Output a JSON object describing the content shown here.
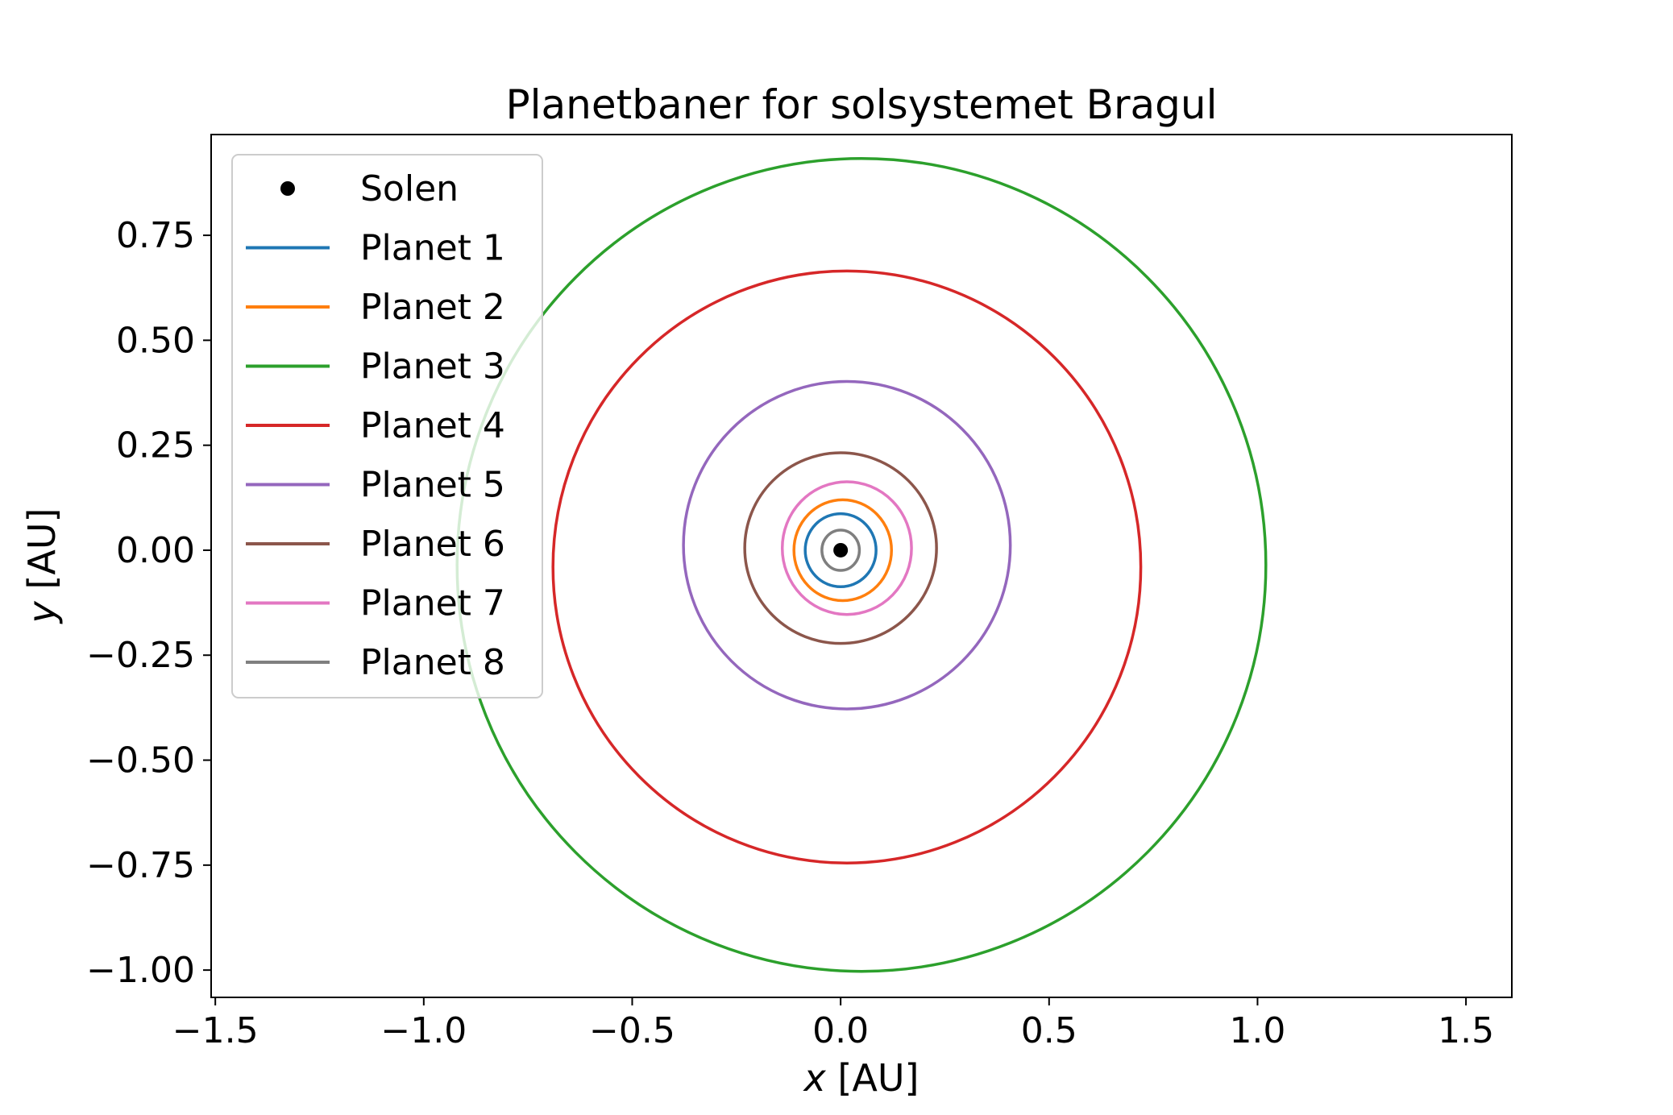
{
  "chart_data": {
    "type": "line",
    "title": "Planetbaner for solsystemet Bragul",
    "xlabel_var": "x",
    "xlabel_unit": " [AU]",
    "ylabel_var": "y",
    "ylabel_unit": " [AU]",
    "xlim": [
      -1.51,
      1.61
    ],
    "ylim": [
      -1.065,
      0.99
    ],
    "xticks": [
      -1.5,
      -1.0,
      -0.5,
      0.0,
      0.5,
      1.0,
      1.5
    ],
    "xtick_labels": [
      "−1.5",
      "−1.0",
      "−0.5",
      "0.0",
      "0.5",
      "1.0",
      "1.5"
    ],
    "yticks": [
      0.75,
      0.5,
      0.25,
      0.0,
      -0.25,
      -0.5,
      -0.75,
      -1.0
    ],
    "ytick_labels": [
      "0.75",
      "0.50",
      "0.25",
      "0.00",
      "−0.25",
      "−0.50",
      "−0.75",
      "−1.00"
    ],
    "grid": false,
    "legend_position": "top-left",
    "sun": {
      "name": "Solen",
      "x": 0.0,
      "y": 0.0,
      "color": "#000000"
    },
    "series": [
      {
        "name": "Planet 1",
        "color": "#1f77b4",
        "center": [
          0.0,
          0.0
        ],
        "semi_axes": [
          0.085,
          0.087
        ]
      },
      {
        "name": "Planet 2",
        "color": "#ff7f0e",
        "center": [
          0.005,
          0.0
        ],
        "semi_axes": [
          0.117,
          0.12
        ]
      },
      {
        "name": "Planet 3",
        "color": "#2ca02c",
        "center": [
          0.05,
          -0.035
        ],
        "semi_axes": [
          0.97,
          0.968
        ]
      },
      {
        "name": "Planet 4",
        "color": "#d62728",
        "center": [
          0.015,
          -0.04
        ],
        "semi_axes": [
          0.705,
          0.705
        ]
      },
      {
        "name": "Planet 5",
        "color": "#9467bd",
        "center": [
          0.015,
          0.012
        ],
        "semi_axes": [
          0.392,
          0.39
        ]
      },
      {
        "name": "Planet 6",
        "color": "#8c564b",
        "center": [
          0.0,
          0.005
        ],
        "semi_axes": [
          0.23,
          0.227
        ]
      },
      {
        "name": "Planet 7",
        "color": "#e377c2",
        "center": [
          0.015,
          0.005
        ],
        "semi_axes": [
          0.155,
          0.158
        ]
      },
      {
        "name": "Planet 8",
        "color": "#7f7f7f",
        "center": [
          0.0,
          0.0
        ],
        "semi_axes": [
          0.045,
          0.048
        ]
      }
    ]
  }
}
